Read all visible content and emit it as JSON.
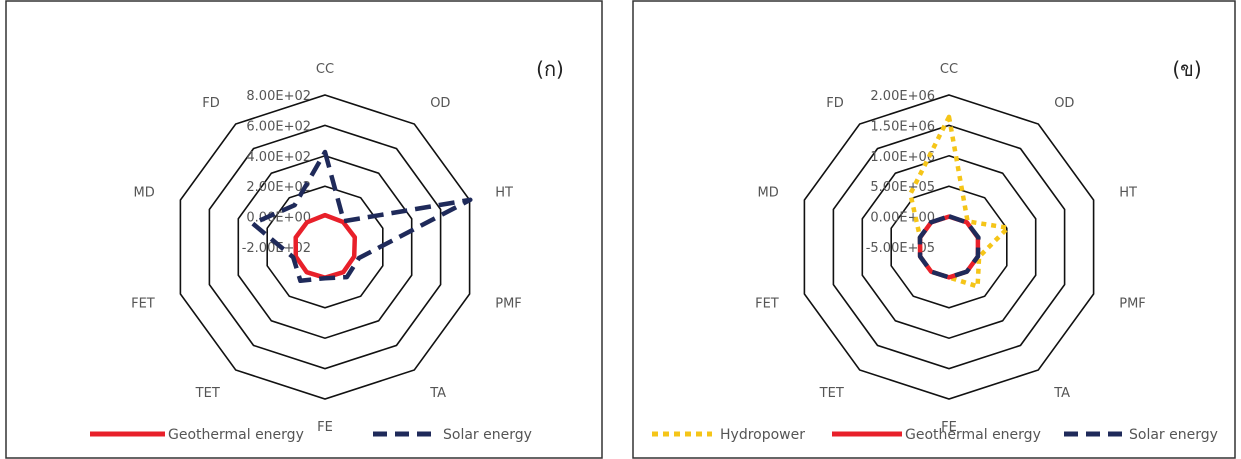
{
  "chart_data": [
    {
      "type": "radar",
      "panel_label": "(ก)",
      "categories": [
        "CC",
        "OD",
        "HT",
        "PMF",
        "TA",
        "FE",
        "TET",
        "FET",
        "MD",
        "FD"
      ],
      "radial_ticks": [
        "-2.00E+02",
        "0.00E+00",
        "2.00E+02",
        "4.00E+02",
        "6.00E+02",
        "8.00E+02"
      ],
      "rlim": [
        -200,
        800
      ],
      "legend_position": "bottom",
      "series": [
        {
          "name": "Geothermal energy",
          "color": "#e8202a",
          "style": "solid",
          "values": [
            10,
            3,
            6,
            2,
            5,
            2,
            5,
            2,
            3,
            1
          ]
        },
        {
          "name": "Solar energy",
          "color": "#1f2a5a",
          "style": "dashed",
          "values": [
            425,
            10,
            805,
            35,
            45,
            5,
            75,
            20,
            300,
            140
          ]
        }
      ]
    },
    {
      "type": "radar",
      "panel_label": "(ข)",
      "categories": [
        "CC",
        "OD",
        "HT",
        "PMF",
        "TA",
        "FE",
        "TET",
        "FET",
        "MD",
        "FD"
      ],
      "radial_ticks": [
        "-5.00E+05",
        "0.00E+00",
        "5.00E+05",
        "1.00E+06",
        "1.50E+06",
        "2.00E+06"
      ],
      "rlim": [
        -500000,
        2000000
      ],
      "legend_position": "bottom",
      "series": [
        {
          "name": "Hydropower",
          "color": "#f5c518",
          "style": "dotted",
          "values": [
            1640000,
            20000,
            520000,
            20000,
            300000,
            0,
            0,
            0,
            0,
            580000
          ]
        },
        {
          "name": "Geothermal energy",
          "color": "#e8202a",
          "style": "solid",
          "values": [
            100,
            30,
            60,
            20,
            50,
            20,
            50,
            20,
            30,
            10
          ]
        },
        {
          "name": "Solar energy",
          "color": "#1f2a5a",
          "style": "dashed",
          "values": [
            4250,
            100,
            8050,
            350,
            450,
            50,
            750,
            200,
            3000,
            1400
          ]
        }
      ]
    }
  ]
}
